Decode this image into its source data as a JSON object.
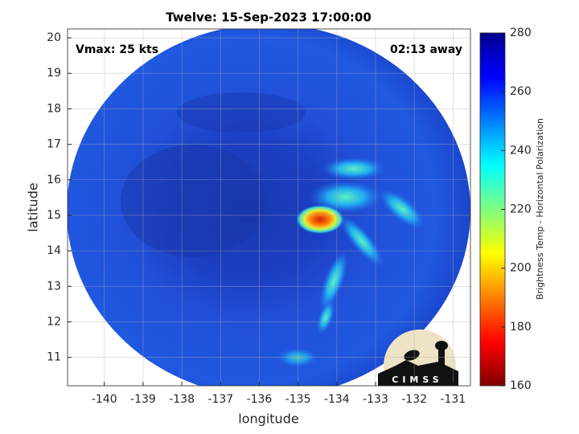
{
  "chart_data": {
    "type": "heatmap",
    "title": "Twelve: 15-Sep-2023 17:00:00",
    "annotations": [
      "Vmax: 25 kts",
      "02:13 away"
    ],
    "logo": "CIMSS",
    "xlabel": "longitude",
    "ylabel": "latitude",
    "xlim": [
      -140.95,
      -130.55
    ],
    "xticks": [
      -140,
      -139,
      -138,
      -137,
      -136,
      -135,
      -134,
      -133,
      -132,
      -131
    ],
    "ylim": [
      10.2,
      20.25
    ],
    "yticks": [
      11,
      12,
      13,
      14,
      15,
      16,
      17,
      18,
      19,
      20
    ],
    "grid": true,
    "colorbar": {
      "label": "Brightness Temp - Horizontal Polarization",
      "lim": [
        160,
        280
      ],
      "ticks": [
        160,
        180,
        200,
        220,
        240,
        260,
        280
      ],
      "colors": [
        "#800000",
        "#ff0000",
        "#ff8000",
        "#ffff00",
        "#80ff80",
        "#00ffff",
        "#0080ff",
        "#0000ff",
        "#00008f"
      ]
    }
  }
}
